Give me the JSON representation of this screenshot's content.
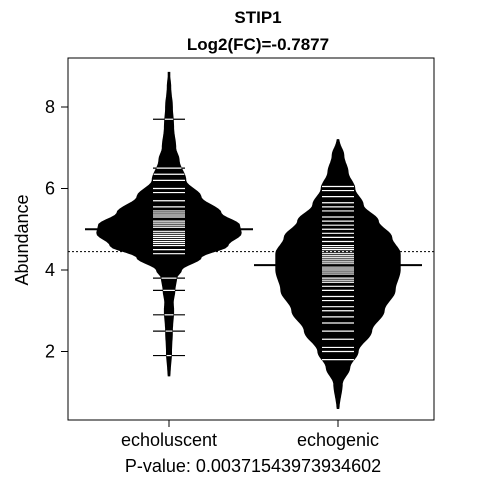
{
  "chart_data": {
    "type": "beanplot",
    "title": "STIP1",
    "subtitle": "Log2(FC)=-0.7877",
    "xlabel": "P-value: 0.00371543973934602",
    "ylabel": "Abundance",
    "ylim": [
      0.3,
      9.2
    ],
    "yticks": [
      2,
      4,
      6,
      8
    ],
    "overall_mean": 4.45,
    "groups": [
      {
        "name": "echoluscent",
        "mean": 5.0,
        "density": [
          [
            1.4,
            0.012
          ],
          [
            2.0,
            0.03
          ],
          [
            2.5,
            0.04
          ],
          [
            3.0,
            0.055
          ],
          [
            3.2,
            0.05
          ],
          [
            3.5,
            0.07
          ],
          [
            3.8,
            0.09
          ],
          [
            4.0,
            0.15
          ],
          [
            4.3,
            0.38
          ],
          [
            4.6,
            0.7
          ],
          [
            4.9,
            0.86
          ],
          [
            5.1,
            0.84
          ],
          [
            5.4,
            0.62
          ],
          [
            5.8,
            0.38
          ],
          [
            6.2,
            0.2
          ],
          [
            6.7,
            0.12
          ],
          [
            7.0,
            0.08
          ],
          [
            7.5,
            0.055
          ],
          [
            8.0,
            0.04
          ],
          [
            8.5,
            0.02
          ],
          [
            8.85,
            0.005
          ]
        ],
        "observations": [
          1.9,
          2.5,
          2.9,
          3.5,
          3.8,
          4.4,
          4.5,
          4.6,
          4.65,
          4.7,
          4.75,
          4.8,
          4.85,
          4.9,
          4.95,
          5.0,
          5.05,
          5.1,
          5.15,
          5.2,
          5.3,
          5.35,
          5.4,
          5.45,
          5.55,
          5.7,
          5.9,
          6.0,
          6.2,
          6.35,
          6.5,
          7.7
        ]
      },
      {
        "name": "echogenic",
        "mean": 4.12,
        "density": [
          [
            0.6,
            0.012
          ],
          [
            1.2,
            0.05
          ],
          [
            1.6,
            0.14
          ],
          [
            2.0,
            0.24
          ],
          [
            2.5,
            0.4
          ],
          [
            3.0,
            0.55
          ],
          [
            3.5,
            0.68
          ],
          [
            4.0,
            0.74
          ],
          [
            4.4,
            0.74
          ],
          [
            4.8,
            0.64
          ],
          [
            5.2,
            0.48
          ],
          [
            5.6,
            0.3
          ],
          [
            6.0,
            0.2
          ],
          [
            6.4,
            0.12
          ],
          [
            6.8,
            0.07
          ],
          [
            7.2,
            0.012
          ]
        ],
        "observations": [
          1.8,
          2.0,
          2.1,
          2.3,
          2.5,
          2.7,
          2.85,
          3.0,
          3.1,
          3.25,
          3.35,
          3.5,
          3.6,
          3.7,
          3.75,
          3.8,
          3.9,
          3.95,
          4.0,
          4.05,
          4.1,
          4.15,
          4.2,
          4.25,
          4.3,
          4.35,
          4.4,
          4.45,
          4.5,
          4.55,
          4.6,
          4.7,
          4.8,
          4.9,
          5.0,
          5.1,
          5.2,
          5.3,
          5.45,
          5.55,
          5.65,
          5.8,
          5.95,
          6.05
        ]
      }
    ]
  }
}
